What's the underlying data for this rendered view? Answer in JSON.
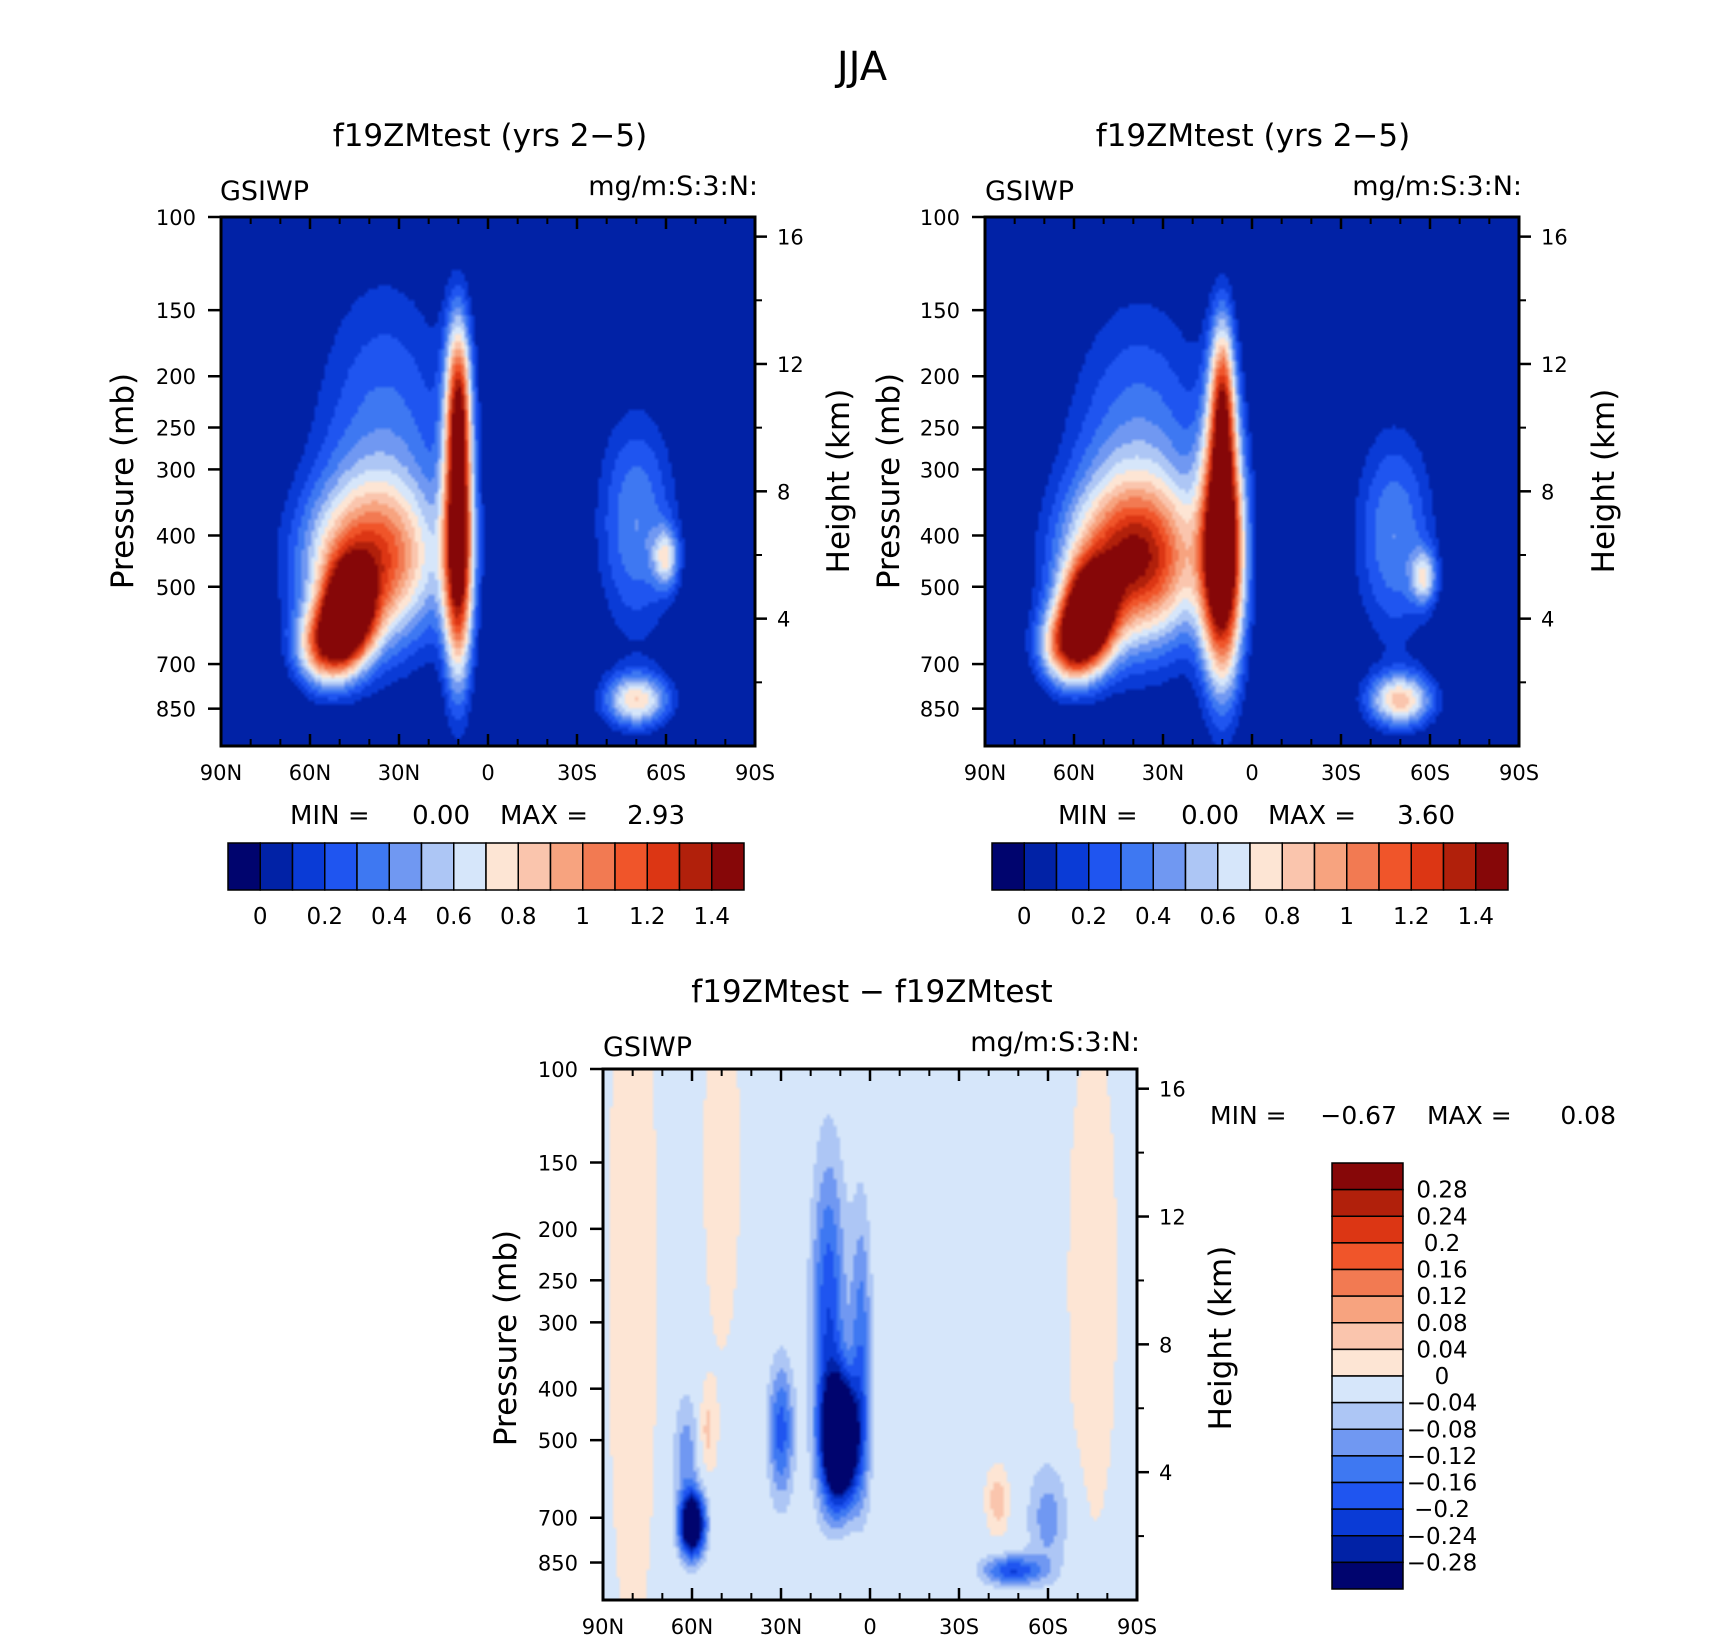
{
  "figure_title": "JJA",
  "chart_data": [
    {
      "type": "heatmap",
      "title": "f19ZMtest (yrs 2−5)",
      "variable": "GSIWP",
      "units": "mg/m:S:3:N:",
      "ylabel": "Pressure (mb)",
      "ylabel_right": "Height (km)",
      "x_ticks": [
        "90N",
        "60N",
        "30N",
        "0",
        "30S",
        "60S",
        "90S"
      ],
      "x_values": [
        90,
        60,
        30,
        0,
        -30,
        -60,
        -90
      ],
      "y_ticks": [
        "100",
        "150",
        "200",
        "250",
        "300",
        "400",
        "500",
        "700",
        "850"
      ],
      "y_values": [
        100,
        150,
        200,
        250,
        300,
        400,
        500,
        700,
        850
      ],
      "y_ticks_right": [
        "16",
        "12",
        "8",
        "4"
      ],
      "ylim": [
        100,
        1000
      ],
      "min_label": "MIN =",
      "min_value": "0.00",
      "max_label": "MAX =",
      "max_value": "2.93",
      "colorbar": {
        "orientation": "horizontal",
        "colors": [
          "#00046e",
          "#0122a6",
          "#0a3bd6",
          "#1f55f0",
          "#3e78f2",
          "#7098f2",
          "#adc6f5",
          "#d6e6fa",
          "#fde5d4",
          "#fac5ad",
          "#f7a37f",
          "#f27a52",
          "#f0552a",
          "#dc3614",
          "#b1200b",
          "#860708"
        ],
        "labels": [
          "0",
          "0.2",
          "0.4",
          "0.6",
          "0.8",
          "1",
          "1.2",
          "1.4"
        ]
      },
      "features": [
        {
          "lat": 47,
          "p": 560,
          "value": 1.5,
          "lat_spread": 6,
          "p_spread": 80
        },
        {
          "lat": 40,
          "p": 450,
          "value": 1.05,
          "lat_spread": 16,
          "p_spread": 110
        },
        {
          "lat": 55,
          "p": 650,
          "value": 1.05,
          "lat_spread": 7,
          "p_spread": 80
        },
        {
          "lat": 10,
          "p": 420,
          "value": 1.6,
          "lat_spread": 3.5,
          "p_spread": 170
        },
        {
          "lat": 10,
          "p": 220,
          "value": 1.0,
          "lat_spread": 3,
          "p_spread": 60
        },
        {
          "lat": 35,
          "p": 280,
          "value": 0.45,
          "lat_spread": 18,
          "p_spread": 160
        },
        {
          "lat": -50,
          "p": 820,
          "value": 0.85,
          "lat_spread": 8,
          "p_spread": 70
        },
        {
          "lat": -50,
          "p": 380,
          "value": 0.5,
          "lat_spread": 10,
          "p_spread": 140
        },
        {
          "lat": -60,
          "p": 440,
          "value": 0.6,
          "lat_spread": 3,
          "p_spread": 40
        }
      ]
    },
    {
      "type": "heatmap",
      "title": "f19ZMtest (yrs 2−5)",
      "variable": "GSIWP",
      "units": "mg/m:S:3:N:",
      "ylabel": "Pressure (mb)",
      "ylabel_right": "Height (km)",
      "x_ticks": [
        "90N",
        "60N",
        "30N",
        "0",
        "30S",
        "60S",
        "90S"
      ],
      "x_values": [
        90,
        60,
        30,
        0,
        -30,
        -60,
        -90
      ],
      "y_ticks": [
        "100",
        "150",
        "200",
        "250",
        "300",
        "400",
        "500",
        "700",
        "850"
      ],
      "y_values": [
        100,
        150,
        200,
        250,
        300,
        400,
        500,
        700,
        850
      ],
      "y_ticks_right": [
        "16",
        "12",
        "8",
        "4"
      ],
      "ylim": [
        100,
        1000
      ],
      "min_label": "MIN =",
      "min_value": "0.00",
      "max_label": "MAX =",
      "max_value": "3.60",
      "colorbar": {
        "orientation": "horizontal",
        "colors": [
          "#00046e",
          "#0122a6",
          "#0a3bd6",
          "#1f55f0",
          "#3e78f2",
          "#7098f2",
          "#adc6f5",
          "#d6e6fa",
          "#fde5d4",
          "#fac5ad",
          "#f7a37f",
          "#f27a52",
          "#f0552a",
          "#dc3614",
          "#b1200b",
          "#860708"
        ],
        "labels": [
          "0",
          "0.2",
          "0.4",
          "0.6",
          "0.8",
          "1",
          "1.2",
          "1.4"
        ]
      },
      "features": [
        {
          "lat": 55,
          "p": 560,
          "value": 1.55,
          "lat_spread": 6,
          "p_spread": 80
        },
        {
          "lat": 40,
          "p": 450,
          "value": 1.2,
          "lat_spread": 16,
          "p_spread": 110
        },
        {
          "lat": 62,
          "p": 650,
          "value": 1.1,
          "lat_spread": 7,
          "p_spread": 80
        },
        {
          "lat": 10,
          "p": 430,
          "value": 1.9,
          "lat_spread": 5,
          "p_spread": 170
        },
        {
          "lat": 10,
          "p": 220,
          "value": 1.0,
          "lat_spread": 3,
          "p_spread": 60
        },
        {
          "lat": 38,
          "p": 300,
          "value": 0.5,
          "lat_spread": 18,
          "p_spread": 160
        },
        {
          "lat": -50,
          "p": 820,
          "value": 0.9,
          "lat_spread": 8,
          "p_spread": 70
        },
        {
          "lat": -48,
          "p": 400,
          "value": 0.5,
          "lat_spread": 10,
          "p_spread": 140
        },
        {
          "lat": -58,
          "p": 480,
          "value": 0.6,
          "lat_spread": 3,
          "p_spread": 40
        }
      ]
    },
    {
      "type": "heatmap",
      "title": "f19ZMtest − f19ZMtest",
      "variable": "GSIWP",
      "units": "mg/m:S:3:N:",
      "ylabel": "Pressure (mb)",
      "ylabel_right": "Height (km)",
      "x_ticks": [
        "90N",
        "60N",
        "30N",
        "0",
        "30S",
        "60S",
        "90S"
      ],
      "x_values": [
        90,
        60,
        30,
        0,
        -30,
        -60,
        -90
      ],
      "y_ticks": [
        "100",
        "150",
        "200",
        "250",
        "300",
        "400",
        "500",
        "700",
        "850"
      ],
      "y_values": [
        100,
        150,
        200,
        250,
        300,
        400,
        500,
        700,
        850
      ],
      "y_ticks_right": [
        "16",
        "12",
        "8",
        "4"
      ],
      "ylim": [
        100,
        1000
      ],
      "min_label": "MIN =",
      "min_value": "−0.67",
      "max_label": "MAX =",
      "max_value": "0.08",
      "colorbar": {
        "orientation": "vertical",
        "colors": [
          "#00046e",
          "#0122a6",
          "#0a3bd6",
          "#1f55f0",
          "#3e78f2",
          "#7098f2",
          "#adc6f5",
          "#d6e6fa",
          "#fde5d4",
          "#fac5ad",
          "#f7a37f",
          "#f27a52",
          "#f0552a",
          "#dc3614",
          "#b1200b",
          "#860708"
        ],
        "labels": [
          "0.28",
          "0.24",
          "0.2",
          "0.16",
          "0.12",
          "0.08",
          "0.04",
          "0",
          "−0.04",
          "−0.08",
          "−0.12",
          "−0.16",
          "−0.2",
          "−0.24",
          "−0.28"
        ]
      },
      "features": [
        {
          "lat": 10,
          "p": 500,
          "value": -0.55,
          "lat_spread": 4,
          "p_spread": 90
        },
        {
          "lat": 14,
          "p": 300,
          "value": -0.2,
          "lat_spread": 4,
          "p_spread": 150
        },
        {
          "lat": 3,
          "p": 350,
          "value": -0.15,
          "lat_spread": 2.5,
          "p_spread": 160
        },
        {
          "lat": 30,
          "p": 480,
          "value": -0.18,
          "lat_spread": 3,
          "p_spread": 100
        },
        {
          "lat": 60,
          "p": 720,
          "value": -0.45,
          "lat_spread": 3,
          "p_spread": 70
        },
        {
          "lat": 62,
          "p": 520,
          "value": -0.1,
          "lat_spread": 3,
          "p_spread": 90
        },
        {
          "lat": -48,
          "p": 880,
          "value": -0.2,
          "lat_spread": 7,
          "p_spread": 40
        },
        {
          "lat": -60,
          "p": 700,
          "value": -0.1,
          "lat_spread": 5,
          "p_spread": 120
        },
        {
          "lat": -43,
          "p": 650,
          "value": 0.06,
          "lat_spread": 2.5,
          "p_spread": 60
        },
        {
          "lat": 55,
          "p": 480,
          "value": 0.05,
          "lat_spread": 2,
          "p_spread": 60
        },
        {
          "lat": 80,
          "p": 250,
          "value": 0.03,
          "lat_spread": 6,
          "p_spread": 300
        },
        {
          "lat": -75,
          "p": 250,
          "value": 0.03,
          "lat_spread": 6,
          "p_spread": 200
        },
        {
          "lat": 50,
          "p": 150,
          "value": 0.025,
          "lat_spread": 5,
          "p_spread": 100
        },
        {
          "lat": 10,
          "p": 800,
          "value": 0.02,
          "lat_spread": 12,
          "p_spread": 50
        }
      ]
    }
  ]
}
